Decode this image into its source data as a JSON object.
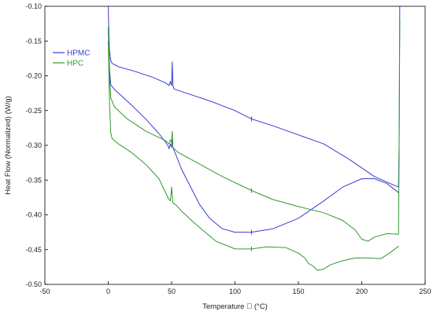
{
  "chart_data": {
    "type": "line",
    "xlabel": "Temperature \u0000  (°C)",
    "ylabel": "Heat Flow (Normalized)  (W/g)",
    "xlim": [
      -50,
      250
    ],
    "ylim": [
      -0.5,
      -0.1
    ],
    "x_ticks": [
      "-50",
      "0",
      "50",
      "100",
      "150",
      "200",
      "250"
    ],
    "y_ticks": [
      "-0.10",
      "-0.15",
      "-0.20",
      "-0.25",
      "-0.30",
      "-0.35",
      "-0.40",
      "-0.45",
      "-0.50"
    ],
    "legend_position": "top-left",
    "grid": false,
    "series": [
      {
        "name": "HPMC",
        "color": "#3b3bd6",
        "curves": [
          [
            [
              0,
              -0.1
            ],
            [
              0.5,
              -0.14
            ],
            [
              1,
              -0.165
            ],
            [
              2,
              -0.178
            ],
            [
              3,
              -0.182
            ],
            [
              8,
              -0.187
            ],
            [
              20,
              -0.193
            ],
            [
              35,
              -0.202
            ],
            [
              45,
              -0.21
            ],
            [
              48,
              -0.214
            ],
            [
              49,
              -0.208
            ],
            [
              50,
              -0.214
            ],
            [
              50.5,
              -0.18
            ],
            [
              51,
              -0.214
            ],
            [
              52,
              -0.219
            ],
            [
              60,
              -0.224
            ],
            [
              80,
              -0.236
            ],
            [
              100,
              -0.25
            ],
            [
              113,
              -0.262
            ],
            [
              130,
              -0.272
            ],
            [
              150,
              -0.285
            ],
            [
              170,
              -0.298
            ],
            [
              190,
              -0.32
            ],
            [
              210,
              -0.345
            ],
            [
              225,
              -0.357
            ],
            [
              229,
              -0.36
            ],
            [
              229.5,
              -0.3
            ],
            [
              230,
              -0.1
            ]
          ],
          [
            [
              0,
              -0.13
            ],
            [
              1,
              -0.19
            ],
            [
              2,
              -0.213
            ],
            [
              5,
              -0.22
            ],
            [
              10,
              -0.228
            ],
            [
              20,
              -0.245
            ],
            [
              30,
              -0.263
            ],
            [
              40,
              -0.283
            ],
            [
              47,
              -0.3
            ],
            [
              48,
              -0.305
            ],
            [
              49,
              -0.298
            ],
            [
              50,
              -0.303
            ],
            [
              50.5,
              -0.285
            ],
            [
              51,
              -0.303
            ],
            [
              53,
              -0.312
            ],
            [
              58,
              -0.335
            ],
            [
              65,
              -0.36
            ],
            [
              72,
              -0.385
            ],
            [
              80,
              -0.405
            ],
            [
              90,
              -0.42
            ],
            [
              100,
              -0.425
            ],
            [
              113,
              -0.425
            ],
            [
              130,
              -0.42
            ],
            [
              150,
              -0.405
            ],
            [
              170,
              -0.38
            ],
            [
              185,
              -0.36
            ],
            [
              200,
              -0.348
            ],
            [
              210,
              -0.348
            ],
            [
              220,
              -0.355
            ],
            [
              229,
              -0.368
            ]
          ]
        ]
      },
      {
        "name": "HPC",
        "color": "#2e9a2e",
        "curves": [
          [
            [
              0,
              -0.13
            ],
            [
              1,
              -0.2
            ],
            [
              2,
              -0.232
            ],
            [
              5,
              -0.245
            ],
            [
              15,
              -0.262
            ],
            [
              30,
              -0.28
            ],
            [
              45,
              -0.293
            ],
            [
              48,
              -0.298
            ],
            [
              49,
              -0.292
            ],
            [
              50,
              -0.295
            ],
            [
              50.5,
              -0.28
            ],
            [
              51,
              -0.303
            ],
            [
              55,
              -0.31
            ],
            [
              70,
              -0.325
            ],
            [
              90,
              -0.345
            ],
            [
              113,
              -0.365
            ],
            [
              130,
              -0.378
            ],
            [
              150,
              -0.388
            ],
            [
              170,
              -0.397
            ],
            [
              185,
              -0.408
            ],
            [
              195,
              -0.422
            ],
            [
              200,
              -0.435
            ],
            [
              205,
              -0.438
            ],
            [
              210,
              -0.432
            ],
            [
              220,
              -0.427
            ],
            [
              229,
              -0.428
            ],
            [
              229.5,
              -0.3
            ],
            [
              230,
              -0.12
            ]
          ],
          [
            [
              0,
              -0.15
            ],
            [
              1,
              -0.24
            ],
            [
              2,
              -0.282
            ],
            [
              3,
              -0.29
            ],
            [
              8,
              -0.298
            ],
            [
              18,
              -0.31
            ],
            [
              30,
              -0.328
            ],
            [
              40,
              -0.348
            ],
            [
              47,
              -0.375
            ],
            [
              49,
              -0.38
            ],
            [
              50,
              -0.36
            ],
            [
              51,
              -0.383
            ],
            [
              53,
              -0.385
            ],
            [
              58,
              -0.395
            ],
            [
              70,
              -0.415
            ],
            [
              85,
              -0.438
            ],
            [
              100,
              -0.449
            ],
            [
              113,
              -0.449
            ],
            [
              125,
              -0.446
            ],
            [
              140,
              -0.447
            ],
            [
              150,
              -0.455
            ],
            [
              155,
              -0.462
            ],
            [
              158,
              -0.47
            ],
            [
              162,
              -0.474
            ],
            [
              165,
              -0.48
            ],
            [
              170,
              -0.478
            ],
            [
              175,
              -0.472
            ],
            [
              185,
              -0.466
            ],
            [
              195,
              -0.462
            ],
            [
              205,
              -0.462
            ],
            [
              215,
              -0.463
            ],
            [
              222,
              -0.455
            ],
            [
              229,
              -0.445
            ]
          ]
        ]
      }
    ]
  }
}
